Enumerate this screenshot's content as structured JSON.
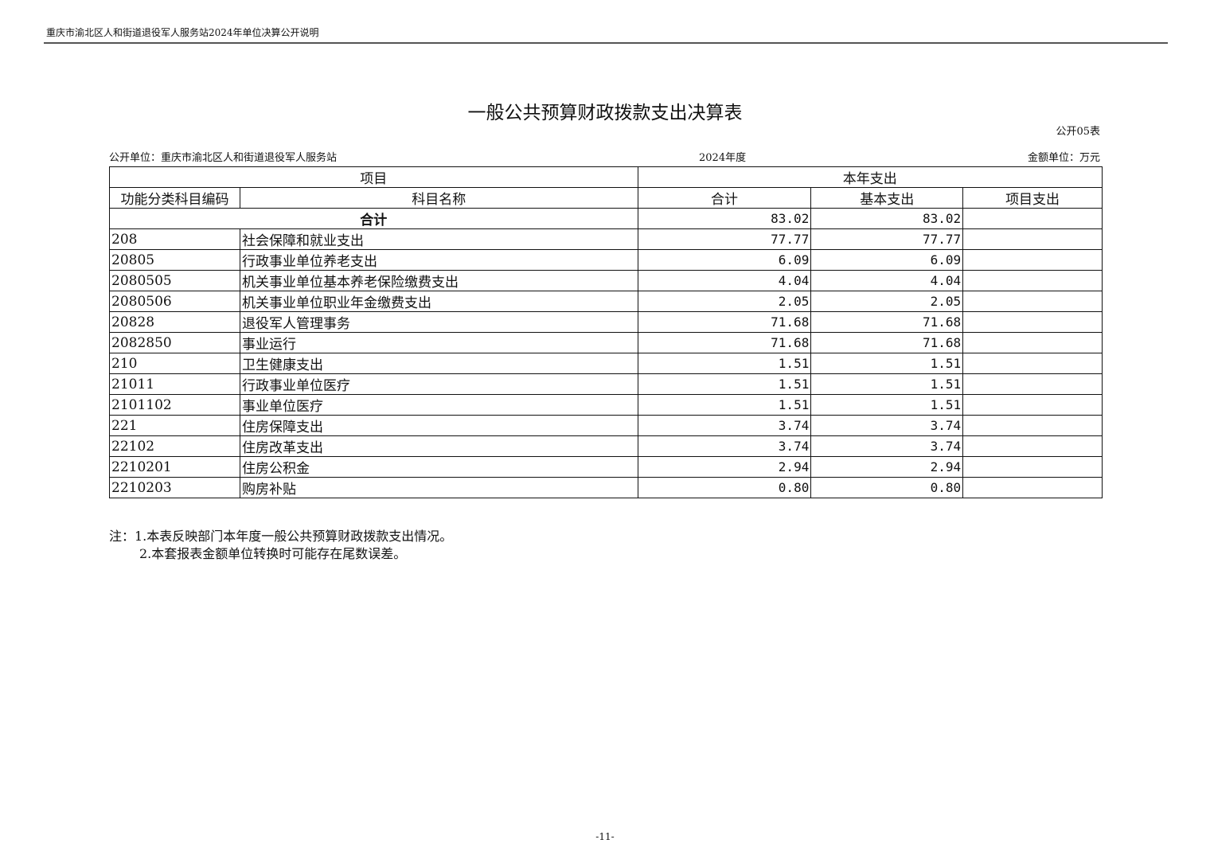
{
  "header": "重庆市渝北区人和街道退役军人服务站2024年单位决算公开说明",
  "title": "一般公共预算财政拨款支出决算表",
  "table_code": "公开05表",
  "unit": "公开单位：重庆市渝北区人和街道退役军人服务站",
  "year": "2024年度",
  "currency": "金额单位：万元",
  "columns": {
    "item": "项目",
    "current_year": "本年支出",
    "code": "功能分类科目编码",
    "name": "科目名称",
    "total": "合计",
    "basic": "基本支出",
    "project": "项目支出"
  },
  "total_row": {
    "label": "合计",
    "total": "83.02",
    "basic": "83.02",
    "project": ""
  },
  "rows": [
    {
      "code": "208",
      "name": "社会保障和就业支出",
      "total": "77.77",
      "basic": "77.77",
      "project": ""
    },
    {
      "code": "20805",
      "name": "行政事业单位养老支出",
      "total": "6.09",
      "basic": "6.09",
      "project": ""
    },
    {
      "code": "2080505",
      "name": "机关事业单位基本养老保险缴费支出",
      "total": "4.04",
      "basic": "4.04",
      "project": ""
    },
    {
      "code": "2080506",
      "name": "机关事业单位职业年金缴费支出",
      "total": "2.05",
      "basic": "2.05",
      "project": ""
    },
    {
      "code": "20828",
      "name": "退役军人管理事务",
      "total": "71.68",
      "basic": "71.68",
      "project": ""
    },
    {
      "code": "2082850",
      "name": "事业运行",
      "total": "71.68",
      "basic": "71.68",
      "project": ""
    },
    {
      "code": "210",
      "name": "卫生健康支出",
      "total": "1.51",
      "basic": "1.51",
      "project": ""
    },
    {
      "code": "21011",
      "name": "行政事业单位医疗",
      "total": "1.51",
      "basic": "1.51",
      "project": ""
    },
    {
      "code": "2101102",
      "name": "事业单位医疗",
      "total": "1.51",
      "basic": "1.51",
      "project": ""
    },
    {
      "code": "221",
      "name": "住房保障支出",
      "total": "3.74",
      "basic": "3.74",
      "project": ""
    },
    {
      "code": "22102",
      "name": "住房改革支出",
      "total": "3.74",
      "basic": "3.74",
      "project": ""
    },
    {
      "code": "2210201",
      "name": "住房公积金",
      "total": "2.94",
      "basic": "2.94",
      "project": ""
    },
    {
      "code": "2210203",
      "name": "购房补贴",
      "total": "0.80",
      "basic": "0.80",
      "project": ""
    }
  ],
  "notes": [
    "注：1.本表反映部门本年度一般公共预算财政拨款支出情况。",
    "2.本套报表金额单位转换时可能存在尾数误差。"
  ],
  "page_number": "-11-"
}
